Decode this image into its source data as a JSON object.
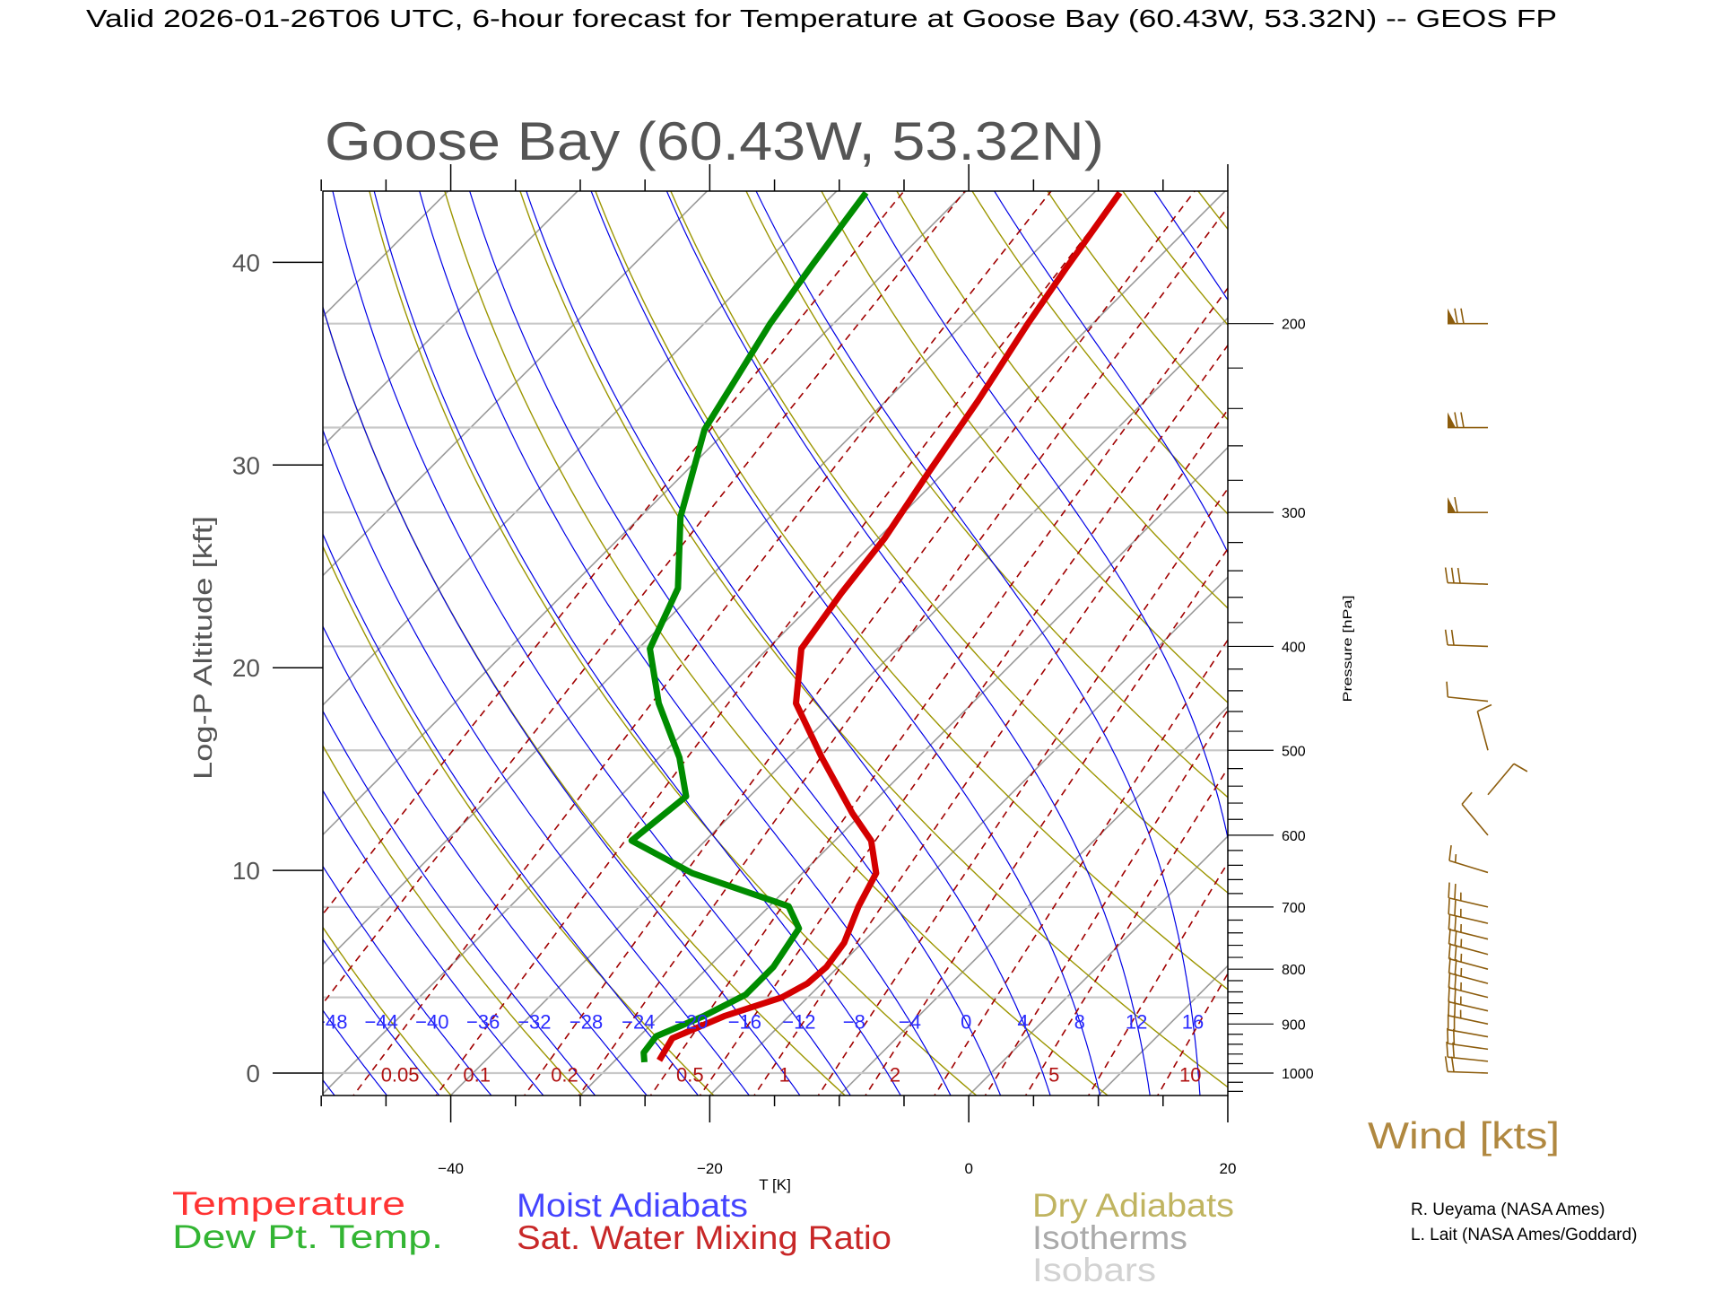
{
  "header": {
    "title": "Valid 2026-01-26T06 UTC, 6-hour forecast for Temperature at Goose Bay (60.43W, 53.32N) -- GEOS FP"
  },
  "chart_data": {
    "type": "line",
    "subtitle": "Goose Bay (60.43W, 53.32N)",
    "xlabel": "T [K]",
    "ylabel_left": "Log-P Altitude [kft]",
    "ylabel_right": "Pressure [hPa]",
    "xlim": [
      -50,
      20
    ],
    "plim_hPa": [
      1049,
      150
    ],
    "x_ticks": [
      -40,
      -20,
      0,
      20
    ],
    "y_left_ticks": [
      0,
      10,
      20,
      30,
      40
    ],
    "y_right_ticks": [
      1000,
      900,
      800,
      700,
      600,
      500,
      400,
      300,
      200
    ],
    "isobars": [
      1000,
      850,
      700,
      500,
      400,
      300,
      250,
      200
    ],
    "moist_adiabat_labels": [
      -48,
      -44,
      -40,
      -36,
      -32,
      -28,
      -24,
      -20,
      -16,
      -12,
      -8,
      -4,
      0,
      4,
      8,
      12,
      16
    ],
    "mixing_ratio_labels": [
      "0.05",
      "0.1",
      "0.2",
      "0.5",
      "1",
      "2",
      "5",
      "10"
    ],
    "series": [
      {
        "name": "Temperature",
        "color": "#d40000",
        "points": [
          {
            "p": 973,
            "t": -26.6
          },
          {
            "p": 928,
            "t": -27.3
          },
          {
            "p": 885,
            "t": -25.0
          },
          {
            "p": 850,
            "t": -22.0
          },
          {
            "p": 825,
            "t": -21.1
          },
          {
            "p": 796,
            "t": -20.9
          },
          {
            "p": 756,
            "t": -21.4
          },
          {
            "p": 699,
            "t": -23.1
          },
          {
            "p": 651,
            "t": -24.3
          },
          {
            "p": 607,
            "t": -27.2
          },
          {
            "p": 572,
            "t": -30.8
          },
          {
            "p": 508,
            "t": -37.4
          },
          {
            "p": 452,
            "t": -43.6
          },
          {
            "p": 402,
            "t": -47.4
          },
          {
            "p": 357,
            "t": -48.6
          },
          {
            "p": 317,
            "t": -49.5
          },
          {
            "p": 275,
            "t": -51.2
          },
          {
            "p": 236,
            "t": -52.9
          },
          {
            "p": 200,
            "t": -55.0
          },
          {
            "p": 178,
            "t": -56.3
          },
          {
            "p": 151,
            "t": -58.0
          }
        ]
      },
      {
        "name": "Dew Pt. Temp.",
        "color": "#008c00",
        "points": [
          {
            "p": 977,
            "t": -27.6
          },
          {
            "p": 957,
            "t": -28.4
          },
          {
            "p": 924,
            "t": -28.7
          },
          {
            "p": 885,
            "t": -26.6
          },
          {
            "p": 845,
            "t": -25.0
          },
          {
            "p": 796,
            "t": -25.0
          },
          {
            "p": 733,
            "t": -26.0
          },
          {
            "p": 699,
            "t": -28.5
          },
          {
            "p": 651,
            "t": -38.5
          },
          {
            "p": 607,
            "t": -45.7
          },
          {
            "p": 552,
            "t": -44.9
          },
          {
            "p": 508,
            "t": -48.4
          },
          {
            "p": 452,
            "t": -54.2
          },
          {
            "p": 402,
            "t": -59.1
          },
          {
            "p": 353,
            "t": -61.6
          },
          {
            "p": 303,
            "t": -66.9
          },
          {
            "p": 251,
            "t": -71.8
          },
          {
            "p": 200,
            "t": -74.9
          },
          {
            "p": 176,
            "t": -76.2
          },
          {
            "p": 151,
            "t": -77.6
          }
        ]
      }
    ],
    "wind": {
      "label": "Wind [kts]",
      "color": "#8c5c0c",
      "barbs": [
        {
          "p": 200,
          "dir": 270,
          "speed": 70
        },
        {
          "p": 250,
          "dir": 270,
          "speed": 70
        },
        {
          "p": 300,
          "dir": 270,
          "speed": 60
        },
        {
          "p": 350,
          "dir": 272,
          "speed": 30
        },
        {
          "p": 400,
          "dir": 272,
          "speed": 20
        },
        {
          "p": 450,
          "dir": 276,
          "speed": 10
        },
        {
          "p": 500,
          "dir": 345,
          "speed": 10
        },
        {
          "p": 550,
          "dir": 40,
          "speed": 10
        },
        {
          "p": 600,
          "dir": 320,
          "speed": 10
        },
        {
          "p": 650,
          "dir": 287,
          "speed": 15
        },
        {
          "p": 700,
          "dir": 283,
          "speed": 25
        },
        {
          "p": 725,
          "dir": 283,
          "speed": 25
        },
        {
          "p": 750,
          "dir": 284,
          "speed": 25
        },
        {
          "p": 775,
          "dir": 285,
          "speed": 25
        },
        {
          "p": 800,
          "dir": 285,
          "speed": 25
        },
        {
          "p": 825,
          "dir": 285,
          "speed": 25
        },
        {
          "p": 850,
          "dir": 284,
          "speed": 25
        },
        {
          "p": 875,
          "dir": 283,
          "speed": 25
        },
        {
          "p": 900,
          "dir": 282,
          "speed": 25
        },
        {
          "p": 925,
          "dir": 280,
          "speed": 20
        },
        {
          "p": 950,
          "dir": 278,
          "speed": 20
        },
        {
          "p": 975,
          "dir": 276,
          "speed": 20
        },
        {
          "p": 1000,
          "dir": 272,
          "speed": 20
        }
      ]
    },
    "legend": [
      {
        "label": "Temperature",
        "color": "#ff3333"
      },
      {
        "label": "Dew Pt. Temp.",
        "color": "#33b533"
      },
      {
        "label": "Moist Adiabats",
        "color": "#4444ff"
      },
      {
        "label": "Sat. Water Mixing Ratio",
        "color": "#c82828"
      },
      {
        "label": "Dry Adiabats",
        "color": "#c0b460"
      },
      {
        "label": "Isotherms",
        "color": "#aaaaaa"
      },
      {
        "label": "Isobars",
        "color": "#d2d2d2"
      }
    ]
  },
  "credits": [
    "R. Ueyama (NASA Ames)",
    "L. Lait (NASA Ames/Goddard)"
  ]
}
